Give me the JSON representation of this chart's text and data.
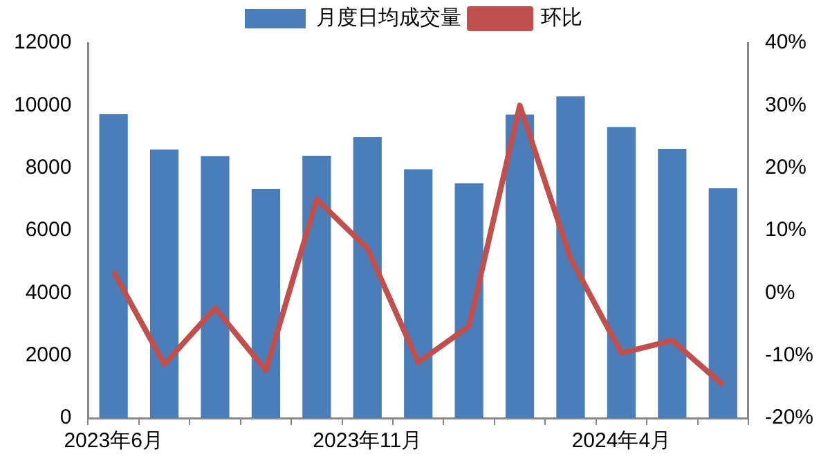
{
  "chart_data": {
    "type": "bar",
    "categories": [
      "2023年6月",
      null,
      null,
      null,
      null,
      "2023年11月",
      null,
      null,
      null,
      null,
      "2024年4月",
      null,
      null
    ],
    "series": [
      {
        "name": "月度日均成交量",
        "color": "#4a7ebb",
        "values": [
          9720,
          8590,
          8380,
          7330,
          8390,
          8990,
          7960,
          7510,
          9710,
          10290,
          9310,
          8610,
          7350
        ]
      },
      {
        "name": "环比",
        "type": "line",
        "axis": "y2",
        "color": "#c0504d",
        "values": [
          3.4,
          -11.4,
          -2.4,
          -12.4,
          15,
          7.1,
          -11.1,
          -5.3,
          30,
          5.5,
          -9.6,
          -7.6,
          -14.7
        ]
      }
    ],
    "ylim": [
      0,
      12000
    ],
    "yticks": [
      0,
      2000,
      4000,
      6000,
      8000,
      10000,
      12000
    ],
    "y2lim": [
      -20,
      40
    ],
    "y2ticks": [
      {
        "value": -20,
        "label": "-20%"
      },
      {
        "value": -10,
        "label": "-10%"
      },
      {
        "value": 0,
        "label": "0%"
      },
      {
        "value": 10,
        "label": "10%"
      },
      {
        "value": 20,
        "label": "20%"
      },
      {
        "value": 30,
        "label": "30%"
      },
      {
        "value": 40,
        "label": "40%"
      }
    ],
    "grid": false,
    "legend": "top",
    "marker": "none"
  }
}
